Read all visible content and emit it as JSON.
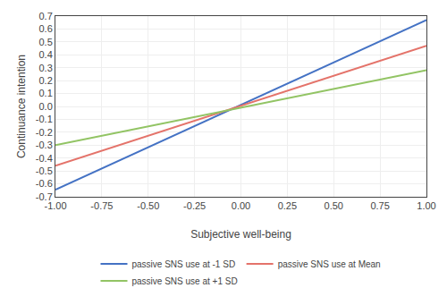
{
  "chart_data": {
    "type": "line",
    "xlabel": "Subjective well-being",
    "ylabel": "Continuance intention",
    "xlim": [
      -1.0,
      1.0
    ],
    "ylim": [
      -0.7,
      0.7
    ],
    "xticks": [
      {
        "value": -1.0,
        "label": "-1.00"
      },
      -0.75,
      {
        "value": -0.5,
        "label": "-0.50"
      },
      -0.25,
      {
        "value": 0.0,
        "label": "0.00"
      },
      0.25,
      {
        "value": 0.5,
        "label": "0.50"
      },
      0.75,
      {
        "value": 1.0,
        "label": "1.00"
      }
    ],
    "yticks": [
      -0.7,
      -0.6,
      -0.5,
      -0.4,
      -0.3,
      -0.2,
      -0.1,
      {
        "value": 0.0,
        "label": "0.0"
      },
      0.1,
      0.2,
      0.3,
      0.4,
      0.5,
      0.6,
      0.7
    ],
    "grid": true,
    "legend": "bottom",
    "series": [
      {
        "name": "passive SNS use at -1 SD",
        "color": "#4472C4",
        "x": [
          -1.0,
          1.0
        ],
        "values": [
          -0.645,
          0.67
        ]
      },
      {
        "name": "passive SNS use at Mean",
        "color": "#E4736A",
        "x": [
          -1.0,
          1.0
        ],
        "values": [
          -0.46,
          0.47
        ]
      },
      {
        "name": "passive SNS use at +1 SD",
        "color": "#92C464",
        "x": [
          -1.0,
          1.0
        ],
        "values": [
          -0.3,
          0.28
        ]
      }
    ]
  }
}
